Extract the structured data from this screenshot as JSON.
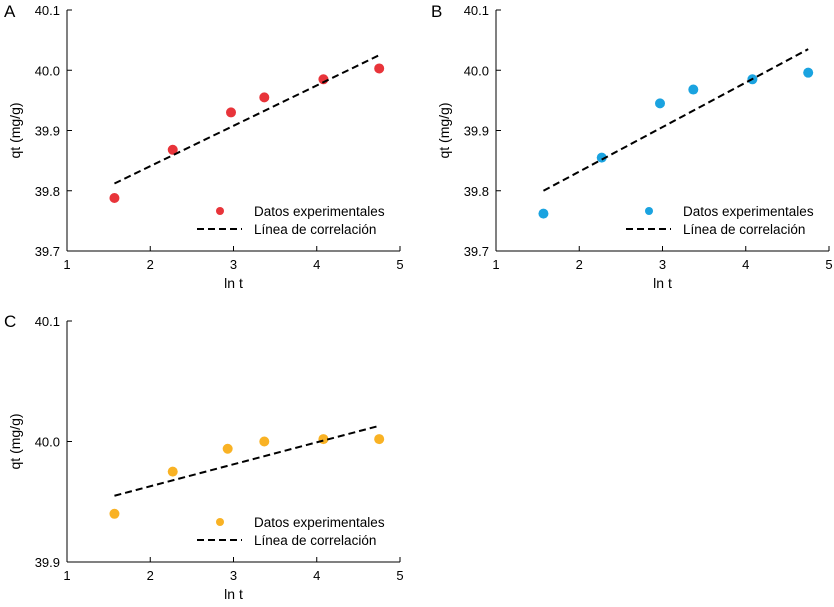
{
  "chart_data": [
    {
      "panel": "A",
      "type": "scatter",
      "xlabel": "ln t",
      "ylabel": "qt (mg/g)",
      "xlim": [
        1,
        5
      ],
      "ylim": [
        39.7,
        40.1
      ],
      "xticks": [
        "1",
        "2",
        "3",
        "4",
        "5"
      ],
      "yticks": [
        "39.7",
        "39.8",
        "39.9",
        "40.0",
        "40.1"
      ],
      "legend_position": "bottom-right",
      "grid": false,
      "color": "#e8343a",
      "series": [
        {
          "name": "Datos experimentales",
          "kind": "points",
          "x": [
            1.57,
            2.27,
            2.97,
            3.37,
            4.08,
            4.75
          ],
          "y": [
            39.788,
            39.868,
            39.93,
            39.955,
            39.985,
            40.003
          ]
        },
        {
          "name": "Línea de correlación",
          "kind": "dashed-line",
          "x": [
            1.57,
            4.75
          ],
          "y": [
            39.812,
            40.025
          ]
        }
      ]
    },
    {
      "panel": "B",
      "type": "scatter",
      "xlabel": "ln t",
      "ylabel": "qt (mg/g)",
      "xlim": [
        1,
        5
      ],
      "ylim": [
        39.7,
        40.1
      ],
      "xticks": [
        "1",
        "2",
        "3",
        "4",
        "5"
      ],
      "yticks": [
        "39.7",
        "39.8",
        "39.9",
        "40.0",
        "40.1"
      ],
      "legend_position": "bottom-right",
      "grid": false,
      "color": "#1aa3e0",
      "series": [
        {
          "name": "Datos experimentales",
          "kind": "points",
          "x": [
            1.57,
            2.27,
            2.97,
            3.37,
            4.08,
            4.75
          ],
          "y": [
            39.762,
            39.855,
            39.945,
            39.968,
            39.985,
            39.996
          ]
        },
        {
          "name": "Línea de correlación",
          "kind": "dashed-line",
          "x": [
            1.57,
            4.75
          ],
          "y": [
            39.8,
            40.035
          ]
        }
      ]
    },
    {
      "panel": "C",
      "type": "scatter",
      "xlabel": "ln t",
      "ylabel": "qt (mg/g)",
      "xlim": [
        1,
        5
      ],
      "ylim": [
        39.9,
        40.1
      ],
      "xticks": [
        "1",
        "2",
        "3",
        "4",
        "5"
      ],
      "yticks": [
        "39.9",
        "40.0",
        "40.1"
      ],
      "legend_position": "bottom-right",
      "grid": false,
      "color": "#f9b224",
      "series": [
        {
          "name": "Datos experimentales",
          "kind": "points",
          "x": [
            1.57,
            2.27,
            2.93,
            3.37,
            4.08,
            4.75
          ],
          "y": [
            39.94,
            39.975,
            39.994,
            40.0,
            40.002,
            40.002
          ]
        },
        {
          "name": "Línea de correlación",
          "kind": "dashed-line",
          "x": [
            1.57,
            4.75
          ],
          "y": [
            39.955,
            40.013
          ]
        }
      ]
    }
  ]
}
